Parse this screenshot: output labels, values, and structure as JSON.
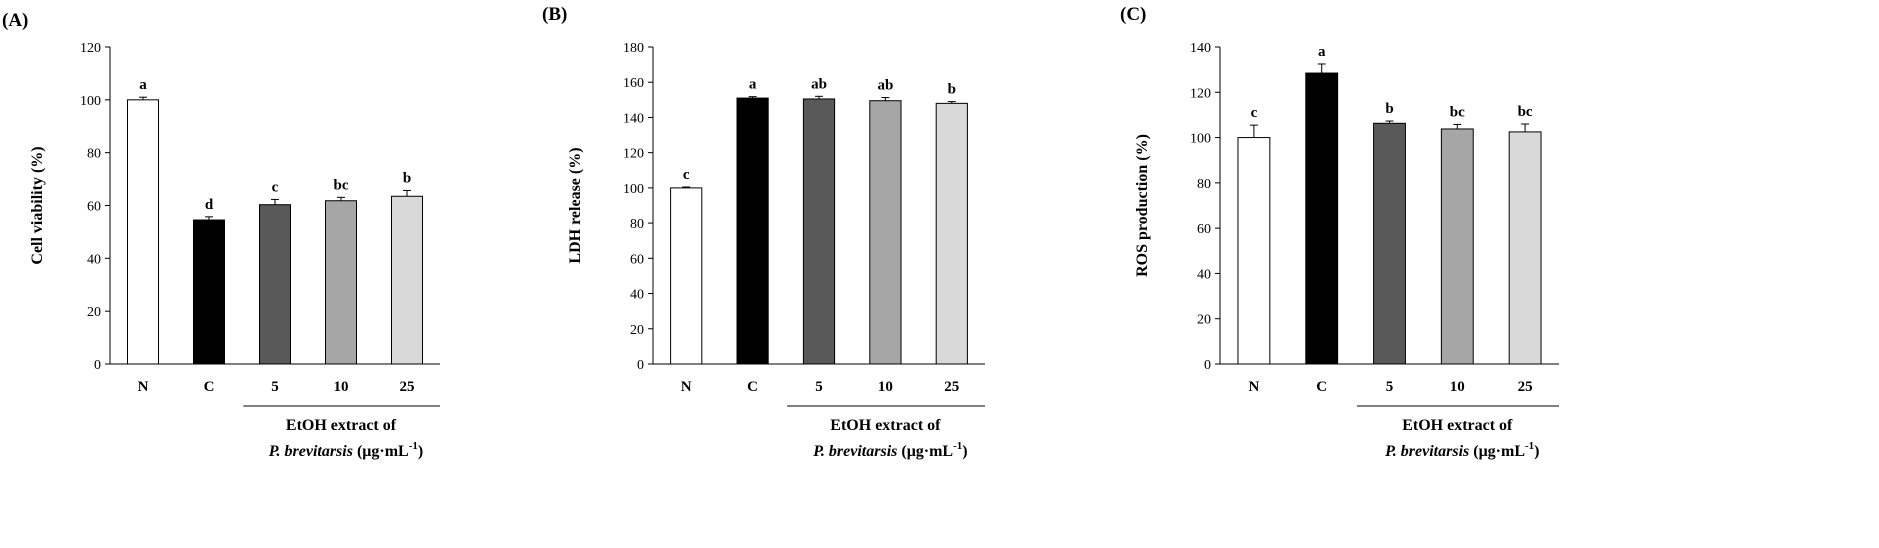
{
  "chart_data": [
    {
      "type": "bar",
      "panel_label": "(A)",
      "ylabel": "Cell viability (%)",
      "ylim": [
        0,
        120
      ],
      "ytick_step": 20,
      "categories": [
        "N",
        "C",
        "5",
        "10",
        "25"
      ],
      "values": [
        100,
        54.5,
        60.3,
        61.8,
        63.5
      ],
      "errors": [
        1.0,
        1.2,
        2.0,
        1.3,
        2.2
      ],
      "significance": [
        "a",
        "d",
        "c",
        "bc",
        "b"
      ],
      "bar_colors": [
        "#ffffff",
        "#000000",
        "#595959",
        "#a6a6a6",
        "#d9d9d9"
      ],
      "group_label_line1": "EtOH extract of",
      "group_label_species": "P. brevitarsis",
      "group_label_unit": "(μg·mL",
      "group_label_exp": "-1",
      "group_label_close": ")"
    },
    {
      "type": "bar",
      "panel_label": "(B)",
      "ylabel": "LDH release (%)",
      "ylim": [
        0,
        180
      ],
      "ytick_step": 20,
      "categories": [
        "N",
        "C",
        "5",
        "10",
        "25"
      ],
      "values": [
        100,
        151,
        150.5,
        149.5,
        148
      ],
      "errors": [
        0.5,
        0.8,
        1.5,
        1.8,
        1.0
      ],
      "significance": [
        "c",
        "a",
        "ab",
        "ab",
        "b"
      ],
      "bar_colors": [
        "#ffffff",
        "#000000",
        "#595959",
        "#a6a6a6",
        "#d9d9d9"
      ],
      "group_label_line1": "EtOH extract of",
      "group_label_species": "P. brevitarsis",
      "group_label_unit": "(μg·mL",
      "group_label_exp": "-1",
      "group_label_close": ")"
    },
    {
      "type": "bar",
      "panel_label": "(C)",
      "ylabel": "ROS production (%)",
      "ylim": [
        0,
        140
      ],
      "ytick_step": 20,
      "categories": [
        "N",
        "C",
        "5",
        "10",
        "25"
      ],
      "values": [
        100,
        128.5,
        106.3,
        103.8,
        102.5
      ],
      "errors": [
        5.5,
        4.0,
        1.0,
        2.0,
        3.5
      ],
      "significance": [
        "c",
        "a",
        "b",
        "bc",
        "bc"
      ],
      "bar_colors": [
        "#ffffff",
        "#000000",
        "#595959",
        "#a6a6a6",
        "#d9d9d9"
      ],
      "group_label_line1": "EtOH extract of",
      "group_label_species": "P. brevitarsis",
      "group_label_unit": "(μg·mL",
      "group_label_exp": "-1",
      "group_label_close": ")"
    }
  ]
}
